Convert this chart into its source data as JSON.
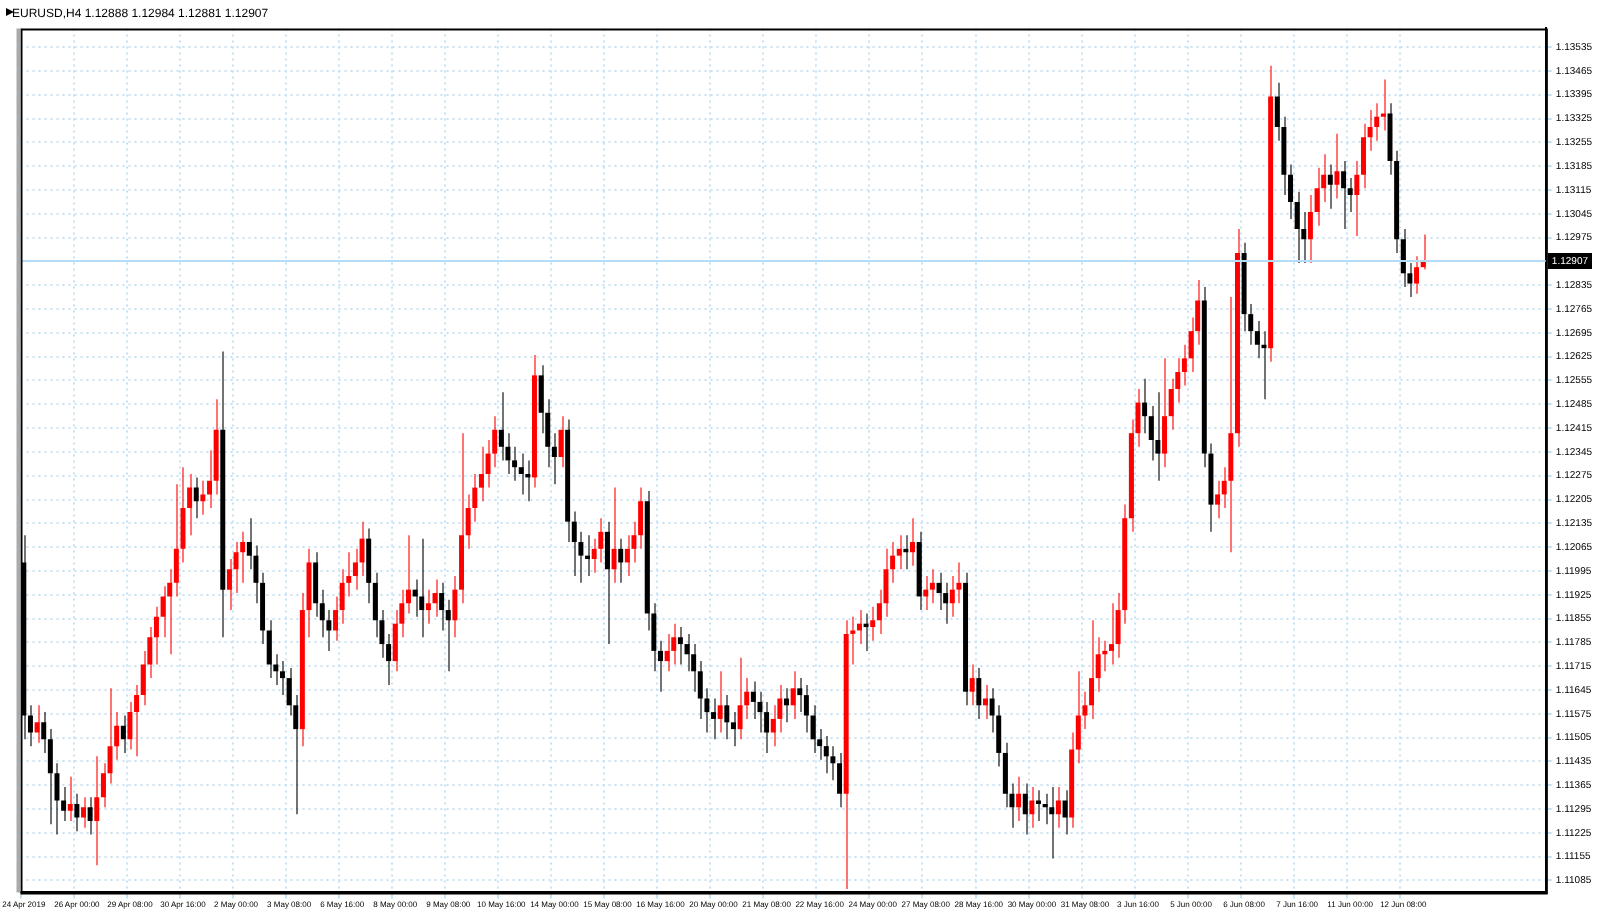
{
  "chart_data": {
    "type": "candlestick",
    "title": "EURUSD,H4 1.12888 1.12984 1.12881 1.12907",
    "categories": [
      "24 Apr 2019",
      null,
      null,
      null,
      null,
      null,
      null,
      null,
      "26 Apr 00:00",
      null,
      null,
      null,
      null,
      null,
      null,
      null,
      "29 Apr 08:00",
      null,
      null,
      null,
      null,
      null,
      null,
      null,
      "30 Apr 16:00",
      null,
      null,
      null,
      null,
      null,
      null,
      null,
      "2 May 00:00",
      null,
      null,
      null,
      null,
      null,
      null,
      null,
      "3 May 08:00",
      null,
      null,
      null,
      null,
      null,
      null,
      null,
      "6 May 16:00",
      null,
      null,
      null,
      null,
      null,
      null,
      null,
      "8 May 00:00",
      null,
      null,
      null,
      null,
      null,
      null,
      null,
      "9 May 08:00",
      null,
      null,
      null,
      null,
      null,
      null,
      null,
      "10 May 16:00",
      null,
      null,
      null,
      null,
      null,
      null,
      null,
      "14 May 00:00",
      null,
      null,
      null,
      null,
      null,
      null,
      null,
      "15 May 08:00",
      null,
      null,
      null,
      null,
      null,
      null,
      null,
      "16 May 16:00",
      null,
      null,
      null,
      null,
      null,
      null,
      null,
      "20 May 00:00",
      null,
      null,
      null,
      null,
      null,
      null,
      null,
      "21 May 08:00",
      null,
      null,
      null,
      null,
      null,
      null,
      null,
      "22 May 16:00",
      null,
      null,
      null,
      null,
      null,
      null,
      null,
      "24 May 00:00",
      null,
      null,
      null,
      null,
      null,
      null,
      null,
      "27 May 08:00",
      null,
      null,
      null,
      null,
      null,
      null,
      null,
      "28 May 16:00",
      null,
      null,
      null,
      null,
      null,
      null,
      null,
      "30 May 00:00",
      null,
      null,
      null,
      null,
      null,
      null,
      null,
      "31 May 08:00",
      null,
      null,
      null,
      null,
      null,
      null,
      null,
      "3 Jun 16:00",
      null,
      null,
      null,
      null,
      null,
      null,
      null,
      "5 Jun 00:00",
      null,
      null,
      null,
      null,
      null,
      null,
      null,
      "6 Jun 08:00",
      null,
      null,
      null,
      null,
      null,
      null,
      null,
      "7 Jun 16:00",
      null,
      null,
      null,
      null,
      null,
      null,
      null,
      "11 Jun 00:00",
      null,
      null,
      null,
      null,
      null,
      null,
      null,
      "12 Jun 08:00",
      null,
      null,
      null,
      null,
      null,
      null,
      null,
      null,
      null,
      null,
      null,
      null,
      null,
      null,
      null,
      null,
      null,
      null,
      null,
      null,
      null
    ],
    "ohlc": [
      [
        1.1202,
        1.121,
        1.115,
        1.1157
      ],
      [
        1.1157,
        1.116,
        1.1148,
        1.1152
      ],
      [
        1.1152,
        1.116,
        1.1149,
        1.1155
      ],
      [
        1.1155,
        1.1158,
        1.1146,
        1.115
      ],
      [
        1.115,
        1.1153,
        1.1125,
        1.114
      ],
      [
        1.114,
        1.1143,
        1.1122,
        1.1132
      ],
      [
        1.1132,
        1.1136,
        1.1126,
        1.1129
      ],
      [
        1.1129,
        1.1139,
        1.1126,
        1.1131
      ],
      [
        1.1131,
        1.1134,
        1.1123,
        1.1127
      ],
      [
        1.1127,
        1.1133,
        1.1124,
        1.113
      ],
      [
        1.113,
        1.1133,
        1.1122,
        1.1126
      ],
      [
        1.1126,
        1.1145,
        1.1113,
        1.1133
      ],
      [
        1.1133,
        1.1143,
        1.113,
        1.114
      ],
      [
        1.114,
        1.1165,
        1.1137,
        1.1148
      ],
      [
        1.1148,
        1.1158,
        1.1144,
        1.1154
      ],
      [
        1.1154,
        1.1157,
        1.1146,
        1.115
      ],
      [
        1.115,
        1.1161,
        1.1147,
        1.1158
      ],
      [
        1.1158,
        1.1166,
        1.1145,
        1.1163
      ],
      [
        1.1163,
        1.1176,
        1.116,
        1.1172
      ],
      [
        1.1172,
        1.1183,
        1.1168,
        1.118
      ],
      [
        1.118,
        1.1189,
        1.1172,
        1.1186
      ],
      [
        1.1186,
        1.1195,
        1.118,
        1.1192
      ],
      [
        1.1192,
        1.12,
        1.1175,
        1.1196
      ],
      [
        1.1196,
        1.1225,
        1.1192,
        1.1206
      ],
      [
        1.1206,
        1.123,
        1.1202,
        1.1218
      ],
      [
        1.1218,
        1.1228,
        1.121,
        1.1224
      ],
      [
        1.1224,
        1.1227,
        1.1215,
        1.122
      ],
      [
        1.122,
        1.1226,
        1.1216,
        1.1222
      ],
      [
        1.1222,
        1.1235,
        1.1218,
        1.1226
      ],
      [
        1.1226,
        1.125,
        1.1222,
        1.1241
      ],
      [
        1.1241,
        1.1264,
        1.118,
        1.1194
      ],
      [
        1.1194,
        1.1203,
        1.1188,
        1.12
      ],
      [
        1.12,
        1.1208,
        1.1193,
        1.1205
      ],
      [
        1.1205,
        1.1211,
        1.1196,
        1.1208
      ],
      [
        1.1208,
        1.1215,
        1.12,
        1.1204
      ],
      [
        1.1204,
        1.1207,
        1.119,
        1.1196
      ],
      [
        1.1196,
        1.1199,
        1.1178,
        1.1182
      ],
      [
        1.1182,
        1.1185,
        1.1168,
        1.1172
      ],
      [
        1.1172,
        1.1175,
        1.1166,
        1.117
      ],
      [
        1.117,
        1.1173,
        1.1163,
        1.1168
      ],
      [
        1.1168,
        1.1171,
        1.1157,
        1.116
      ],
      [
        1.116,
        1.1163,
        1.1128,
        1.1153
      ],
      [
        1.1153,
        1.1193,
        1.1148,
        1.1188
      ],
      [
        1.1188,
        1.1206,
        1.118,
        1.1202
      ],
      [
        1.1202,
        1.1205,
        1.1186,
        1.119
      ],
      [
        1.119,
        1.1194,
        1.118,
        1.1185
      ],
      [
        1.1185,
        1.1188,
        1.1176,
        1.1182
      ],
      [
        1.1182,
        1.1192,
        1.1179,
        1.1188
      ],
      [
        1.1188,
        1.12,
        1.1184,
        1.1196
      ],
      [
        1.1196,
        1.1205,
        1.1192,
        1.1198
      ],
      [
        1.1198,
        1.1206,
        1.1194,
        1.1202
      ],
      [
        1.1202,
        1.1214,
        1.1198,
        1.1209
      ],
      [
        1.1209,
        1.1212,
        1.119,
        1.1196
      ],
      [
        1.1196,
        1.1199,
        1.118,
        1.1185
      ],
      [
        1.1185,
        1.1188,
        1.1174,
        1.1178
      ],
      [
        1.1178,
        1.1181,
        1.1166,
        1.1173
      ],
      [
        1.1173,
        1.1188,
        1.117,
        1.1184
      ],
      [
        1.1184,
        1.1194,
        1.118,
        1.119
      ],
      [
        1.119,
        1.121,
        1.1187,
        1.1194
      ],
      [
        1.1194,
        1.1197,
        1.1186,
        1.1192
      ],
      [
        1.1192,
        1.1209,
        1.118,
        1.1188
      ],
      [
        1.1188,
        1.1194,
        1.1184,
        1.119
      ],
      [
        1.119,
        1.1197,
        1.1186,
        1.1193
      ],
      [
        1.1193,
        1.1196,
        1.1182,
        1.1188
      ],
      [
        1.1188,
        1.1191,
        1.117,
        1.1185
      ],
      [
        1.1185,
        1.1198,
        1.118,
        1.1194
      ],
      [
        1.1194,
        1.124,
        1.119,
        1.121
      ],
      [
        1.121,
        1.1222,
        1.1206,
        1.1218
      ],
      [
        1.1218,
        1.1228,
        1.1214,
        1.1224
      ],
      [
        1.1224,
        1.1236,
        1.122,
        1.1228
      ],
      [
        1.1228,
        1.1238,
        1.1224,
        1.1234
      ],
      [
        1.1234,
        1.1245,
        1.123,
        1.1241
      ],
      [
        1.1241,
        1.1252,
        1.1232,
        1.1236
      ],
      [
        1.1236,
        1.124,
        1.1228,
        1.1232
      ],
      [
        1.1232,
        1.1236,
        1.1226,
        1.123
      ],
      [
        1.123,
        1.1234,
        1.1222,
        1.1228
      ],
      [
        1.1228,
        1.1232,
        1.122,
        1.1227
      ],
      [
        1.1227,
        1.1263,
        1.1224,
        1.1257
      ],
      [
        1.1257,
        1.126,
        1.124,
        1.1246
      ],
      [
        1.1246,
        1.125,
        1.123,
        1.1236
      ],
      [
        1.1236,
        1.124,
        1.1225,
        1.1233
      ],
      [
        1.1233,
        1.1245,
        1.123,
        1.1241
      ],
      [
        1.1241,
        1.1244,
        1.1208,
        1.1214
      ],
      [
        1.1214,
        1.1217,
        1.1198,
        1.1208
      ],
      [
        1.1208,
        1.1211,
        1.1196,
        1.1204
      ],
      [
        1.1204,
        1.121,
        1.1198,
        1.1203
      ],
      [
        1.1203,
        1.1209,
        1.1199,
        1.1206
      ],
      [
        1.1206,
        1.1215,
        1.1202,
        1.1211
      ],
      [
        1.1211,
        1.1214,
        1.1178,
        1.12
      ],
      [
        1.12,
        1.1224,
        1.1196,
        1.1206
      ],
      [
        1.1206,
        1.1209,
        1.1196,
        1.1202
      ],
      [
        1.1202,
        1.121,
        1.1198,
        1.1206
      ],
      [
        1.1206,
        1.1214,
        1.1202,
        1.121
      ],
      [
        1.121,
        1.1224,
        1.1206,
        1.122
      ],
      [
        1.122,
        1.1223,
        1.1182,
        1.1187
      ],
      [
        1.1187,
        1.119,
        1.117,
        1.1176
      ],
      [
        1.1176,
        1.1179,
        1.1164,
        1.1173
      ],
      [
        1.1173,
        1.1181,
        1.117,
        1.1176
      ],
      [
        1.1176,
        1.1184,
        1.1172,
        1.118
      ],
      [
        1.118,
        1.1183,
        1.1172,
        1.1178
      ],
      [
        1.1178,
        1.1181,
        1.117,
        1.1175
      ],
      [
        1.1175,
        1.1178,
        1.1164,
        1.117
      ],
      [
        1.117,
        1.1173,
        1.1156,
        1.1162
      ],
      [
        1.1162,
        1.1165,
        1.1152,
        1.1158
      ],
      [
        1.1158,
        1.1162,
        1.115,
        1.1156
      ],
      [
        1.1156,
        1.117,
        1.1152,
        1.116
      ],
      [
        1.116,
        1.1163,
        1.115,
        1.1155
      ],
      [
        1.1155,
        1.1158,
        1.1148,
        1.1153
      ],
      [
        1.1153,
        1.1174,
        1.115,
        1.116
      ],
      [
        1.116,
        1.1168,
        1.1156,
        1.1164
      ],
      [
        1.1164,
        1.1167,
        1.1156,
        1.1161
      ],
      [
        1.1161,
        1.1164,
        1.1152,
        1.1158
      ],
      [
        1.1158,
        1.1161,
        1.1146,
        1.1152
      ],
      [
        1.1152,
        1.116,
        1.1148,
        1.1156
      ],
      [
        1.1156,
        1.1166,
        1.1152,
        1.1162
      ],
      [
        1.1162,
        1.1165,
        1.1155,
        1.116
      ],
      [
        1.116,
        1.117,
        1.1156,
        1.1165
      ],
      [
        1.1165,
        1.1168,
        1.1158,
        1.1163
      ],
      [
        1.1163,
        1.1166,
        1.1152,
        1.1157
      ],
      [
        1.1157,
        1.116,
        1.1146,
        1.115
      ],
      [
        1.115,
        1.1153,
        1.1144,
        1.1148
      ],
      [
        1.1148,
        1.1151,
        1.114,
        1.1145
      ],
      [
        1.1145,
        1.1148,
        1.1138,
        1.1143
      ],
      [
        1.1143,
        1.1146,
        1.113,
        1.1134
      ],
      [
        1.1134,
        1.1185,
        1.1106,
        1.1181
      ],
      [
        1.1181,
        1.1186,
        1.1172,
        1.1182
      ],
      [
        1.1182,
        1.1188,
        1.1178,
        1.1184
      ],
      [
        1.1184,
        1.1187,
        1.1176,
        1.1183
      ],
      [
        1.1183,
        1.1189,
        1.1179,
        1.1185
      ],
      [
        1.1185,
        1.1194,
        1.1181,
        1.119
      ],
      [
        1.119,
        1.1206,
        1.1186,
        1.12
      ],
      [
        1.12,
        1.1208,
        1.1196,
        1.1204
      ],
      [
        1.1204,
        1.121,
        1.12,
        1.1206
      ],
      [
        1.1206,
        1.121,
        1.12,
        1.1205
      ],
      [
        1.1205,
        1.1215,
        1.1201,
        1.1208
      ],
      [
        1.1208,
        1.1211,
        1.1188,
        1.1192
      ],
      [
        1.1192,
        1.1198,
        1.1188,
        1.1194
      ],
      [
        1.1194,
        1.12,
        1.119,
        1.1196
      ],
      [
        1.1196,
        1.1199,
        1.1188,
        1.1193
      ],
      [
        1.1193,
        1.1196,
        1.1184,
        1.119
      ],
      [
        1.119,
        1.1198,
        1.1186,
        1.1194
      ],
      [
        1.1194,
        1.1202,
        1.119,
        1.1196
      ],
      [
        1.1196,
        1.1199,
        1.116,
        1.1164
      ],
      [
        1.1164,
        1.1172,
        1.116,
        1.1168
      ],
      [
        1.1168,
        1.1171,
        1.1156,
        1.116
      ],
      [
        1.116,
        1.1166,
        1.1156,
        1.1162
      ],
      [
        1.1162,
        1.1165,
        1.1152,
        1.1157
      ],
      [
        1.1157,
        1.116,
        1.1142,
        1.1146
      ],
      [
        1.1146,
        1.1149,
        1.113,
        1.1134
      ],
      [
        1.1134,
        1.1137,
        1.1124,
        1.113
      ],
      [
        1.113,
        1.1139,
        1.1126,
        1.1134
      ],
      [
        1.1134,
        1.1137,
        1.1122,
        1.1128
      ],
      [
        1.1128,
        1.1136,
        1.1124,
        1.1132
      ],
      [
        1.1132,
        1.1135,
        1.1126,
        1.1131
      ],
      [
        1.1131,
        1.1134,
        1.1125,
        1.113
      ],
      [
        1.113,
        1.1136,
        1.1115,
        1.1128
      ],
      [
        1.1128,
        1.1136,
        1.1124,
        1.1132
      ],
      [
        1.1132,
        1.1135,
        1.1122,
        1.1127
      ],
      [
        1.1127,
        1.1152,
        1.1124,
        1.1147
      ],
      [
        1.1147,
        1.117,
        1.1143,
        1.1157
      ],
      [
        1.1157,
        1.1164,
        1.1153,
        1.116
      ],
      [
        1.116,
        1.1185,
        1.1156,
        1.1168
      ],
      [
        1.1168,
        1.118,
        1.1164,
        1.1175
      ],
      [
        1.1175,
        1.1179,
        1.117,
        1.1176
      ],
      [
        1.1176,
        1.119,
        1.1172,
        1.1178
      ],
      [
        1.1178,
        1.1193,
        1.1174,
        1.1188
      ],
      [
        1.1188,
        1.1219,
        1.1184,
        1.1215
      ],
      [
        1.1215,
        1.1244,
        1.1211,
        1.124
      ],
      [
        1.124,
        1.1253,
        1.1236,
        1.1249
      ],
      [
        1.1249,
        1.1256,
        1.124,
        1.1245
      ],
      [
        1.1245,
        1.1248,
        1.1232,
        1.1238
      ],
      [
        1.1238,
        1.1252,
        1.1226,
        1.1234
      ],
      [
        1.1234,
        1.1262,
        1.123,
        1.1245
      ],
      [
        1.1245,
        1.1256,
        1.1241,
        1.1253
      ],
      [
        1.1253,
        1.1262,
        1.1249,
        1.1258
      ],
      [
        1.1258,
        1.1266,
        1.1254,
        1.1262
      ],
      [
        1.1262,
        1.1274,
        1.1258,
        1.127
      ],
      [
        1.127,
        1.1285,
        1.1266,
        1.1279
      ],
      [
        1.1279,
        1.1283,
        1.123,
        1.1234
      ],
      [
        1.1234,
        1.1237,
        1.1211,
        1.1219
      ],
      [
        1.1219,
        1.1226,
        1.1215,
        1.1222
      ],
      [
        1.1222,
        1.123,
        1.1218,
        1.1226
      ],
      [
        1.1226,
        1.128,
        1.1205,
        1.124
      ],
      [
        1.124,
        1.13,
        1.1236,
        1.1293
      ],
      [
        1.1293,
        1.1296,
        1.127,
        1.1275
      ],
      [
        1.1275,
        1.1278,
        1.1266,
        1.127
      ],
      [
        1.127,
        1.1273,
        1.1262,
        1.1266
      ],
      [
        1.1266,
        1.127,
        1.125,
        1.1265
      ],
      [
        1.1265,
        1.1348,
        1.1261,
        1.1339
      ],
      [
        1.1339,
        1.1343,
        1.1326,
        1.133
      ],
      [
        1.133,
        1.1333,
        1.131,
        1.1316
      ],
      [
        1.1316,
        1.1319,
        1.1303,
        1.1308
      ],
      [
        1.1308,
        1.1311,
        1.129,
        1.13
      ],
      [
        1.13,
        1.1305,
        1.129,
        1.1297
      ],
      [
        1.1297,
        1.131,
        1.129,
        1.1305
      ],
      [
        1.1305,
        1.1318,
        1.1301,
        1.1312
      ],
      [
        1.1312,
        1.1322,
        1.1308,
        1.1316
      ],
      [
        1.1316,
        1.1319,
        1.1306,
        1.1313
      ],
      [
        1.1313,
        1.1328,
        1.1309,
        1.1317
      ],
      [
        1.1317,
        1.132,
        1.13,
        1.1312
      ],
      [
        1.1312,
        1.1315,
        1.1305,
        1.131
      ],
      [
        1.131,
        1.132,
        1.1298,
        1.1316
      ],
      [
        1.1316,
        1.1331,
        1.1312,
        1.1327
      ],
      [
        1.1327,
        1.1335,
        1.1323,
        1.133
      ],
      [
        1.133,
        1.1337,
        1.1326,
        1.1333
      ],
      [
        1.1333,
        1.1344,
        1.1329,
        1.1334
      ],
      [
        1.1334,
        1.1337,
        1.1316,
        1.132
      ],
      [
        1.132,
        1.1323,
        1.1293,
        1.1297
      ],
      [
        1.1297,
        1.13,
        1.1283,
        1.1287
      ],
      [
        1.1287,
        1.129,
        1.128,
        1.1284
      ],
      [
        1.1284,
        1.1292,
        1.1281,
        1.12888
      ],
      [
        1.12888,
        1.12984,
        1.12881,
        1.12907
      ],
      null,
      null,
      null,
      null,
      null,
      null,
      null,
      null,
      null,
      null,
      null,
      null,
      null,
      null,
      null,
      null,
      null,
      null
    ],
    "colors": [
      "#000000",
      "#000000",
      "#ff0000",
      "#000000",
      "#000000",
      "#000000",
      "#000000",
      "#ff0000",
      "#000000",
      "#ff0000",
      "#000000",
      "#ff0000",
      "#ff0000",
      "#ff0000",
      "#ff0000",
      "#000000",
      "#ff0000",
      "#ff0000",
      "#ff0000",
      "#ff0000",
      "#ff0000",
      "#ff0000",
      "#ff0000",
      "#ff0000",
      "#ff0000",
      "#ff0000",
      "#000000",
      "#ff0000",
      "#ff0000",
      "#ff0000",
      "#000000",
      "#ff0000",
      "#ff0000",
      "#ff0000",
      "#000000",
      "#000000",
      "#000000",
      "#000000",
      "#000000",
      "#000000",
      "#000000",
      "#000000",
      "#ff0000",
      "#ff0000",
      "#000000",
      "#000000",
      "#000000",
      "#ff0000",
      "#ff0000",
      "#ff0000",
      "#ff0000",
      "#ff0000",
      "#000000",
      "#000000",
      "#000000",
      "#000000",
      "#ff0000",
      "#ff0000",
      "#ff0000",
      "#000000",
      "#000000",
      "#ff0000",
      "#ff0000",
      "#000000",
      "#000000",
      "#ff0000",
      "#ff0000",
      "#ff0000",
      "#ff0000",
      "#ff0000",
      "#ff0000",
      "#ff0000",
      "#000000",
      "#000000",
      "#000000",
      "#000000",
      "#000000",
      "#ff0000",
      "#000000",
      "#000000",
      "#000000",
      "#ff0000",
      "#000000",
      "#000000",
      "#000000",
      "#000000",
      "#ff0000",
      "#ff0000",
      "#000000",
      "#ff0000",
      "#000000",
      "#ff0000",
      "#ff0000",
      "#ff0000",
      "#000000",
      "#000000",
      "#000000",
      "#ff0000",
      "#ff0000",
      "#000000",
      "#000000",
      "#000000",
      "#000000",
      "#000000",
      "#000000",
      "#ff0000",
      "#000000",
      "#000000",
      "#ff0000",
      "#ff0000",
      "#000000",
      "#000000",
      "#000000",
      "#ff0000",
      "#ff0000",
      "#000000",
      "#ff0000",
      "#000000",
      "#000000",
      "#000000",
      "#000000",
      "#000000",
      "#000000",
      "#000000",
      "#ff0000",
      "#ff0000",
      "#ff0000",
      "#000000",
      "#ff0000",
      "#ff0000",
      "#ff0000",
      "#ff0000",
      "#ff0000",
      "#000000",
      "#ff0000",
      "#000000",
      "#ff0000",
      "#ff0000",
      "#000000",
      "#000000",
      "#ff0000",
      "#ff0000",
      "#000000",
      "#ff0000",
      "#000000",
      "#ff0000",
      "#000000",
      "#000000",
      "#000000",
      "#000000",
      "#ff0000",
      "#000000",
      "#ff0000",
      "#000000",
      "#000000",
      "#000000",
      "#ff0000",
      "#000000",
      "#ff0000",
      "#ff0000",
      "#ff0000",
      "#ff0000",
      "#ff0000",
      "#ff0000",
      "#ff0000",
      "#ff0000",
      "#ff0000",
      "#ff0000",
      "#ff0000",
      "#000000",
      "#000000",
      "#000000",
      "#ff0000",
      "#ff0000",
      "#ff0000",
      "#ff0000",
      "#ff0000",
      "#ff0000",
      "#000000",
      "#000000",
      "#ff0000",
      "#ff0000",
      "#ff0000",
      "#ff0000",
      "#000000",
      "#000000",
      "#000000",
      "#000000",
      "#ff0000",
      "#000000",
      "#000000",
      "#000000",
      "#000000",
      "#000000",
      "#ff0000",
      "#ff0000",
      "#ff0000",
      "#000000",
      "#ff0000",
      "#000000",
      "#000000",
      "#ff0000",
      "#ff0000",
      "#ff0000",
      "#ff0000",
      "#ff0000",
      "#000000",
      "#000000",
      "#000000",
      "#000000",
      "#ff0000",
      "#ff0000",
      null,
      null,
      null,
      null,
      null,
      null,
      null,
      null,
      null,
      null,
      null,
      null,
      null,
      null,
      null,
      null,
      null,
      null
    ],
    "ylim": [
      1.1105,
      1.1359
    ],
    "yticks": [
      1.11085,
      1.11155,
      1.11225,
      1.11295,
      1.11365,
      1.11435,
      1.11505,
      1.11575,
      1.11645,
      1.11715,
      1.11785,
      1.11855,
      1.11925,
      1.11995,
      1.12065,
      1.12135,
      1.12205,
      1.12275,
      1.12345,
      1.12415,
      1.12485,
      1.12555,
      1.12625,
      1.12695,
      1.12765,
      1.12835,
      1.12975,
      1.13045,
      1.13115,
      1.13185,
      1.13255,
      1.13325,
      1.13395,
      1.13465,
      1.13535
    ],
    "grid": true,
    "ref_lines": [
      {
        "axis": "y",
        "value": 1.12907,
        "label": "1.12907",
        "color": "#b4dcf5"
      }
    ]
  }
}
